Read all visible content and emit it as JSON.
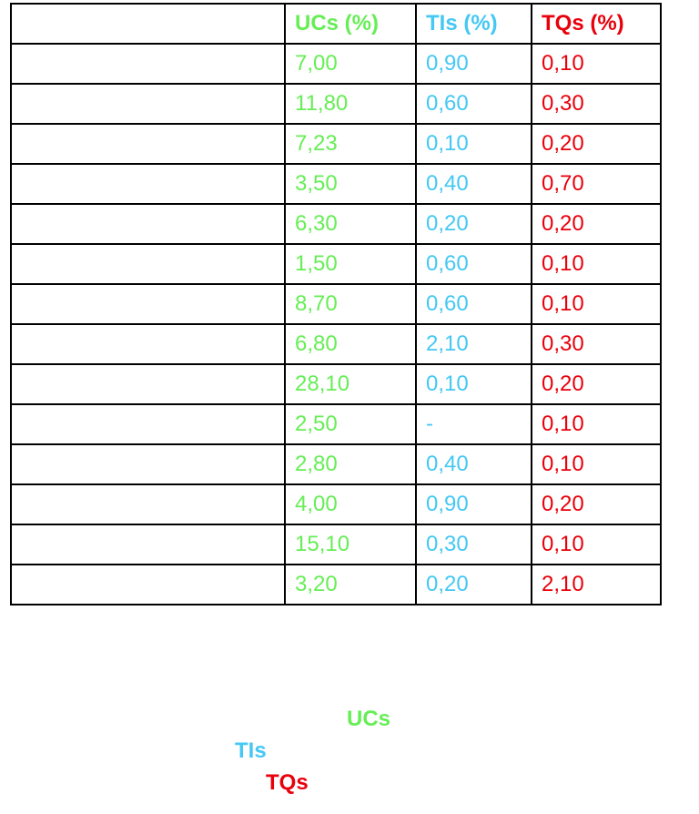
{
  "table": {
    "headers": [
      "",
      "UCs (%)",
      "TIs (%)",
      "TQs (%)"
    ],
    "rows": [
      [
        "",
        "7,00",
        "0,90",
        "0,10"
      ],
      [
        "",
        "11,80",
        "0,60",
        "0,30"
      ],
      [
        "",
        "7,23",
        "0,10",
        "0,20"
      ],
      [
        "",
        "3,50",
        "0,40",
        "0,70"
      ],
      [
        "",
        "6,30",
        "0,20",
        "0,20"
      ],
      [
        "",
        "1,50",
        "0,60",
        "0,10"
      ],
      [
        "",
        "8,70",
        "0,60",
        "0,10"
      ],
      [
        "",
        "6,80",
        "2,10",
        "0,30"
      ],
      [
        "",
        "28,10",
        "0,10",
        "0,20"
      ],
      [
        "",
        "2,50",
        "-",
        "0,10"
      ],
      [
        "",
        "2,80",
        "0,40",
        "0,10"
      ],
      [
        "",
        "4,00",
        "0,90",
        "0,20"
      ],
      [
        "",
        "15,10",
        "0,30",
        "0,10"
      ],
      [
        "",
        "3,20",
        "0,20",
        "2,10"
      ]
    ]
  },
  "legend": {
    "uc_label": "UCs",
    "ti_label": "TIs",
    "tq_label": "TQs"
  },
  "colors": {
    "uc": "#66ee55",
    "ti": "#44c8f4",
    "tq": "#e8000b",
    "border": "#000000"
  }
}
